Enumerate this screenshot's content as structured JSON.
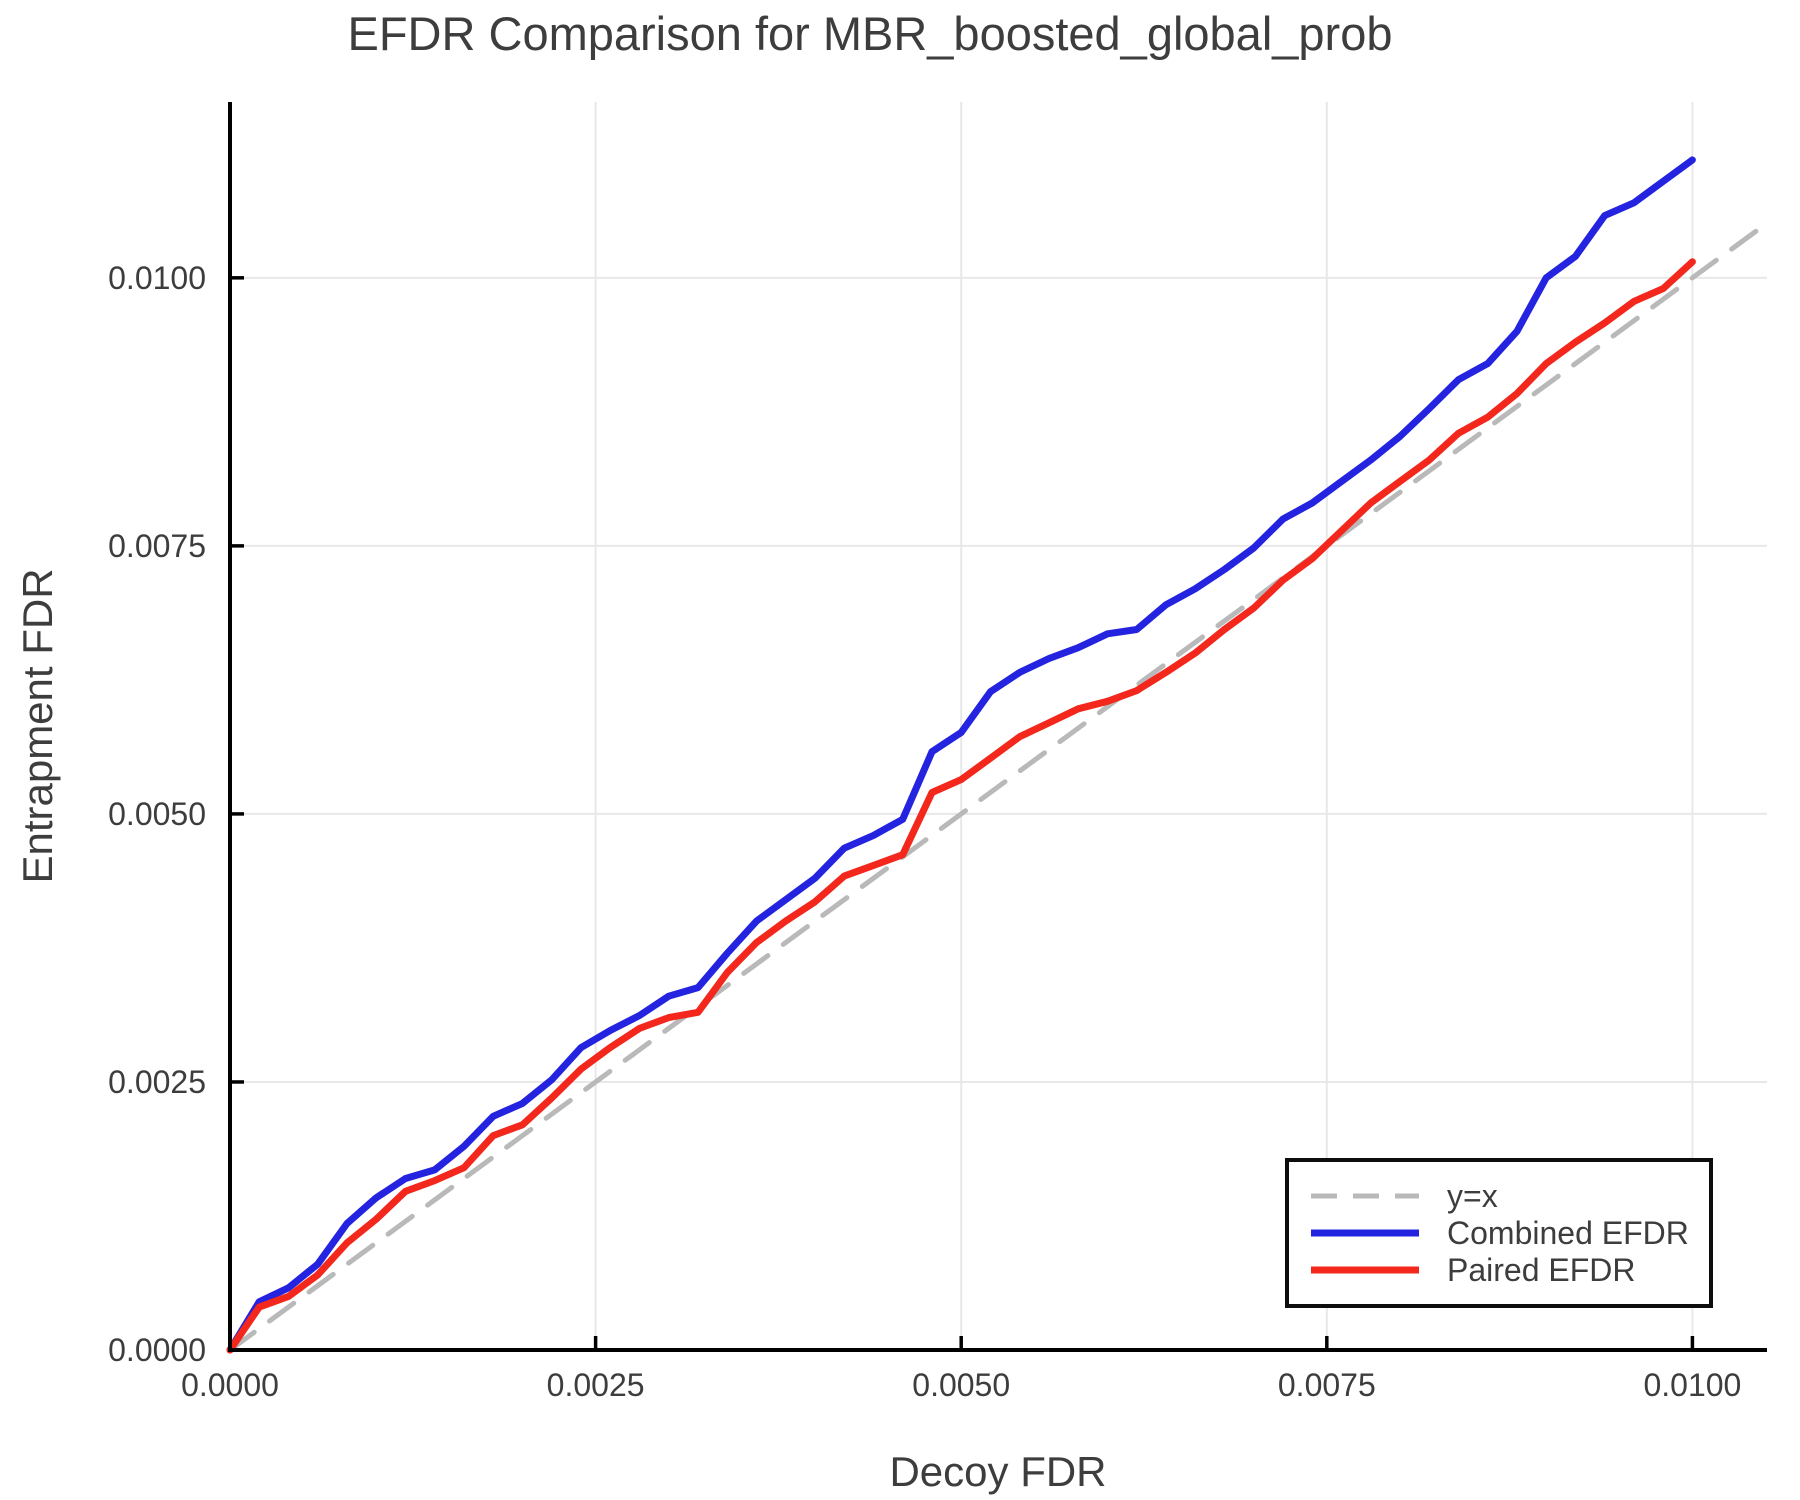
{
  "title": "EFDR Comparison for MBR_boosted_global_prob",
  "axes": {
    "x_label": "Decoy FDR",
    "y_label": "Entrapment FDR"
  },
  "colors": {
    "background": "#ffffff",
    "grid": "#e8e8e8",
    "spine": "#000000",
    "text": "#3d3d3d",
    "identity_line": "#b9b9b9",
    "combined_efdr": "#2323e0",
    "paired_efdr": "#f3271b"
  },
  "legend": {
    "items": [
      {
        "label": "y=x",
        "color": "#b9b9b9",
        "dashed": true
      },
      {
        "label": "Combined EFDR",
        "color": "#2323e0",
        "dashed": false
      },
      {
        "label": "Paired EFDR",
        "color": "#f3271b",
        "dashed": false
      }
    ]
  },
  "chart_data": {
    "type": "line",
    "title": "EFDR Comparison for MBR_boosted_global_prob",
    "xlabel": "Decoy FDR",
    "ylabel": "Entrapment FDR",
    "xlim": [
      0,
      0.01051
    ],
    "ylim": [
      0,
      0.01164
    ],
    "grid": true,
    "legend_position": "lower right",
    "x_ticks": {
      "values": [
        0,
        0.0025,
        0.005,
        0.0075,
        0.01
      ],
      "labels": [
        "0.0000",
        "0.0025",
        "0.0050",
        "0.0075",
        "0.0100"
      ]
    },
    "y_ticks": {
      "values": [
        0,
        0.0025,
        0.005,
        0.0075,
        0.01
      ],
      "labels": [
        "0.0000",
        "0.0025",
        "0.0050",
        "0.0075",
        "0.0100"
      ]
    },
    "series": [
      {
        "name": "y=x",
        "color": "#b9b9b9",
        "style": "dashed",
        "width": 5,
        "x": [
          0,
          0.01047
        ],
        "y": [
          0,
          0.01047
        ]
      },
      {
        "name": "Combined EFDR",
        "color": "#2323e0",
        "style": "solid",
        "width": 7,
        "x": [
          0.0,
          0.0002,
          0.0004,
          0.0006,
          0.0008,
          0.001,
          0.0012,
          0.0014,
          0.0016,
          0.0018,
          0.002,
          0.0022,
          0.0024,
          0.0026,
          0.0028,
          0.003,
          0.0032,
          0.0034,
          0.0036,
          0.0038,
          0.004,
          0.0042,
          0.0044,
          0.0046,
          0.0048,
          0.005,
          0.0052,
          0.0054,
          0.0056,
          0.0058,
          0.006,
          0.0062,
          0.0064,
          0.0066,
          0.0068,
          0.007,
          0.0072,
          0.0074,
          0.0076,
          0.0078,
          0.008,
          0.0082,
          0.0084,
          0.0086,
          0.0088,
          0.009,
          0.0092,
          0.0094,
          0.0096,
          0.0098,
          0.01
        ],
        "y": [
          0.0,
          0.00045,
          0.00058,
          0.0008,
          0.00118,
          0.00142,
          0.0016,
          0.00168,
          0.0019,
          0.00218,
          0.0023,
          0.00252,
          0.00282,
          0.00298,
          0.00312,
          0.0033,
          0.00338,
          0.0037,
          0.004,
          0.0042,
          0.0044,
          0.00468,
          0.0048,
          0.00495,
          0.00558,
          0.00576,
          0.00614,
          0.00632,
          0.00645,
          0.00655,
          0.00668,
          0.00672,
          0.00695,
          0.0071,
          0.00728,
          0.00748,
          0.00775,
          0.0079,
          0.0081,
          0.0083,
          0.00852,
          0.00878,
          0.00905,
          0.0092,
          0.0095,
          0.01,
          0.0102,
          0.01058,
          0.0107,
          0.0109,
          0.0111
        ]
      },
      {
        "name": "Paired EFDR",
        "color": "#f3271b",
        "style": "solid",
        "width": 7,
        "x": [
          0.0,
          0.0002,
          0.0004,
          0.0006,
          0.0008,
          0.001,
          0.0012,
          0.0014,
          0.0016,
          0.0018,
          0.002,
          0.0022,
          0.0024,
          0.0026,
          0.0028,
          0.003,
          0.0032,
          0.0034,
          0.0036,
          0.0038,
          0.004,
          0.0042,
          0.0044,
          0.0046,
          0.0048,
          0.005,
          0.0052,
          0.0054,
          0.0056,
          0.0058,
          0.006,
          0.0062,
          0.0064,
          0.0066,
          0.0068,
          0.007,
          0.0072,
          0.0074,
          0.0076,
          0.0078,
          0.008,
          0.0082,
          0.0084,
          0.0086,
          0.0088,
          0.009,
          0.0092,
          0.0094,
          0.0096,
          0.0098,
          0.01
        ],
        "y": [
          0.0,
          0.0004,
          0.0005,
          0.0007,
          0.001,
          0.00122,
          0.00148,
          0.00158,
          0.0017,
          0.002,
          0.0021,
          0.00235,
          0.00262,
          0.00282,
          0.003,
          0.0031,
          0.00315,
          0.00352,
          0.0038,
          0.004,
          0.00418,
          0.00442,
          0.00452,
          0.00462,
          0.0052,
          0.00532,
          0.00552,
          0.00572,
          0.00585,
          0.00598,
          0.00605,
          0.00615,
          0.00632,
          0.0065,
          0.00672,
          0.00692,
          0.00718,
          0.00738,
          0.00764,
          0.0079,
          0.0081,
          0.0083,
          0.00855,
          0.0087,
          0.00892,
          0.0092,
          0.0094,
          0.00958,
          0.00978,
          0.0099,
          0.01015
        ]
      }
    ]
  }
}
